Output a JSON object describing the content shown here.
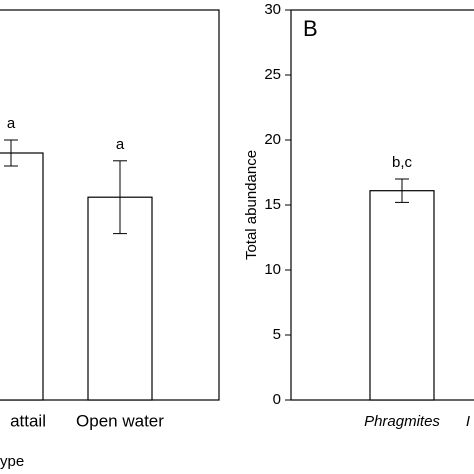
{
  "chart_data": [
    {
      "type": "bar",
      "xlabel": "ype",
      "categories": [
        "attail",
        "Open water"
      ],
      "values": [
        19.0,
        15.6
      ],
      "errors": [
        1.0,
        2.8
      ],
      "annotations": [
        "a",
        "a"
      ],
      "color": "#ffffff",
      "ylim": [
        0,
        30
      ]
    },
    {
      "type": "bar",
      "title": "B",
      "ylabel": "Total abundance",
      "categories": [
        "Phragmites",
        "I"
      ],
      "values": [
        16.1,
        null
      ],
      "errors": [
        0.9,
        null
      ],
      "annotations": [
        "b,c",
        null
      ],
      "color": "#ffffff",
      "ylim": [
        0,
        30
      ],
      "yticks": [
        0,
        5,
        10,
        15,
        20,
        25,
        30
      ]
    }
  ]
}
